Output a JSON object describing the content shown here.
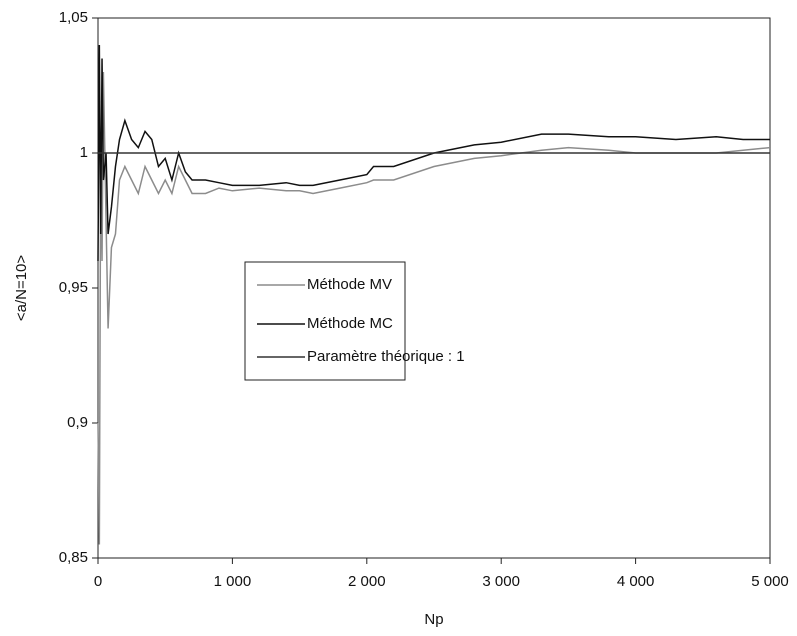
{
  "chart_data": {
    "type": "line",
    "xlabel": "Np",
    "ylabel": "<a/N=10>",
    "x": [
      0,
      10,
      20,
      30,
      40,
      60,
      75,
      100,
      130,
      160,
      200,
      250,
      300,
      350,
      400,
      450,
      500,
      550,
      600,
      650,
      700,
      800,
      900,
      1000,
      1200,
      1400,
      1500,
      1600,
      1800,
      2000,
      2050,
      2200,
      2500,
      2800,
      3000,
      3300,
      3500,
      3800,
      4000,
      4300,
      4600,
      4800,
      5000
    ],
    "series": [
      {
        "name": "Méthode MV",
        "color": "#8c8c8c",
        "values": [
          0.9,
          0.855,
          1.0,
          0.96,
          1.03,
          0.975,
          0.935,
          0.965,
          0.97,
          0.99,
          0.995,
          0.99,
          0.985,
          0.995,
          0.99,
          0.985,
          0.99,
          0.985,
          0.995,
          0.99,
          0.985,
          0.985,
          0.987,
          0.986,
          0.987,
          0.986,
          0.986,
          0.985,
          0.987,
          0.989,
          0.99,
          0.99,
          0.995,
          0.998,
          0.999,
          1.001,
          1.002,
          1.001,
          1.0,
          1.0,
          1.0,
          1.001,
          1.002
        ]
      },
      {
        "name": "Méthode MC",
        "color": "#111111",
        "values": [
          0.96,
          1.04,
          0.97,
          1.035,
          0.99,
          1.0,
          0.97,
          0.98,
          0.995,
          1.005,
          1.012,
          1.005,
          1.002,
          1.008,
          1.005,
          0.995,
          0.998,
          0.99,
          1.0,
          0.993,
          0.99,
          0.99,
          0.989,
          0.988,
          0.988,
          0.989,
          0.988,
          0.988,
          0.99,
          0.992,
          0.995,
          0.995,
          1.0,
          1.003,
          1.004,
          1.007,
          1.007,
          1.006,
          1.006,
          1.005,
          1.006,
          1.005,
          1.005
        ]
      },
      {
        "name": "Paramètre théorique : 1",
        "color": "#333333",
        "x": [
          0,
          5000
        ],
        "values": [
          1,
          1
        ]
      }
    ],
    "xlim": [
      0,
      5000
    ],
    "xticks": [
      0,
      {
        "value": 1000,
        "label": "1 000"
      },
      {
        "value": 2000,
        "label": "2 000"
      },
      {
        "value": 3000,
        "label": "3 000"
      },
      {
        "value": 4000,
        "label": "4 000"
      },
      {
        "value": 5000,
        "label": "5 000"
      }
    ],
    "ylim": [
      0.85,
      1.05
    ],
    "yticks": [
      {
        "value": 0.85,
        "label": "0,85"
      },
      {
        "value": 0.9,
        "label": "0,9"
      },
      {
        "value": 0.95,
        "label": "0,95"
      },
      1,
      {
        "value": 1.05,
        "label": "1,05"
      }
    ],
    "grid": false
  }
}
